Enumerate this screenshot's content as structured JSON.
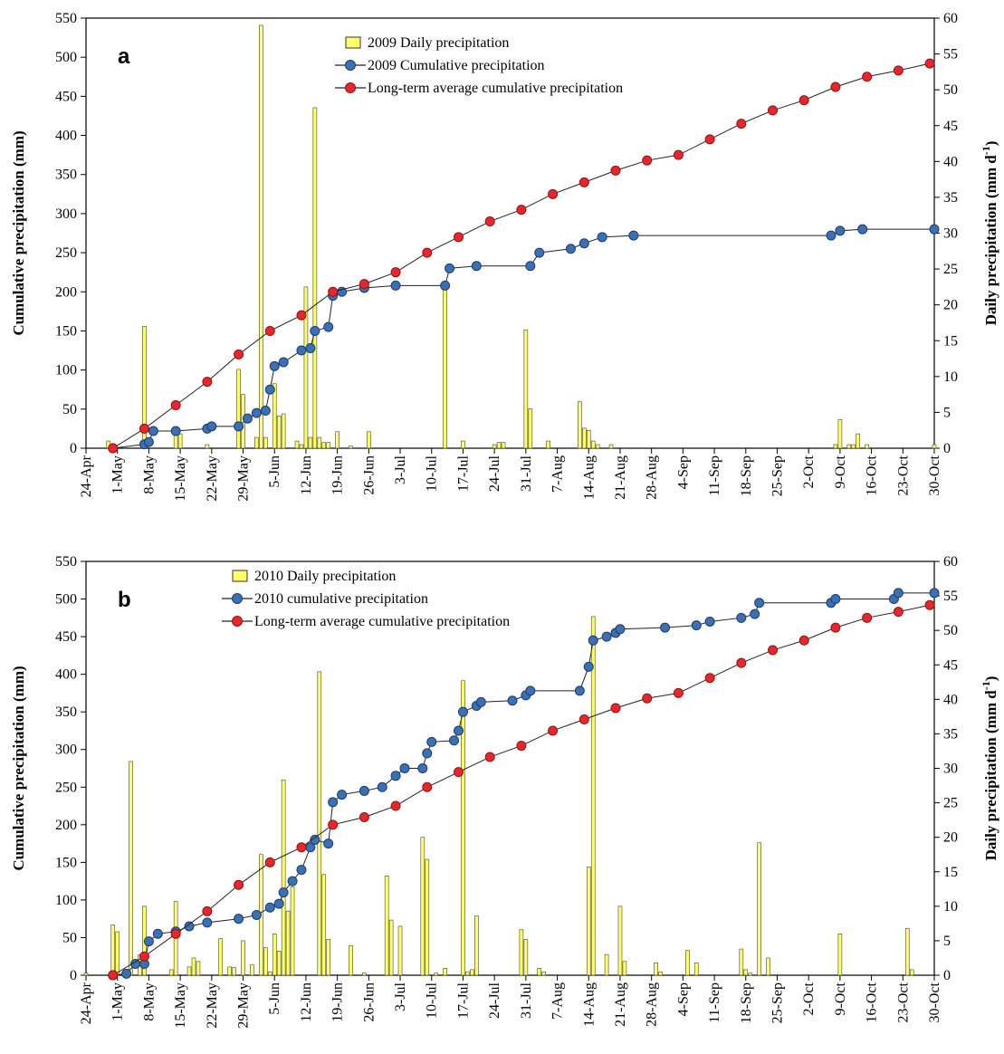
{
  "chart_data": [
    {
      "type": "combo",
      "panel_label": "a",
      "y_label": "Cumulative precipitation (mm)",
      "y2_label": [
        "Daily precipitation (mm d",
        "-1",
        ")"
      ],
      "xlim": [
        "24-Apr",
        "30-Oct"
      ],
      "xticks": [
        "24-Apr",
        "1-May",
        "8-May",
        "15-May",
        "22-May",
        "29-May",
        "5-Jun",
        "12-Jun",
        "19-Jun",
        "26-Jun",
        "3-Jul",
        "10-Jul",
        "17-Jul",
        "24-Jul",
        "31-Jul",
        "7-Aug",
        "14-Aug",
        "21-Aug",
        "28-Aug",
        "4-Sep",
        "11-Sep",
        "18-Sep",
        "25-Sep",
        "2-Oct",
        "9-Oct",
        "16-Oct",
        "23-Oct",
        "30-Oct"
      ],
      "ylim": [
        0,
        550
      ],
      "yticks": [
        0,
        50,
        100,
        150,
        200,
        250,
        300,
        350,
        400,
        450,
        500,
        550
      ],
      "y2lim": [
        0,
        60
      ],
      "y2ticks": [
        0,
        5,
        10,
        15,
        20,
        25,
        30,
        35,
        40,
        45,
        50,
        55,
        60
      ],
      "series": [
        {
          "name": "2009 Daily precipitation",
          "type": "bar",
          "axis": "y2",
          "color": "#ffff66",
          "x": [
            "29-Apr",
            "7-May",
            "14-May",
            "15-May",
            "21-May",
            "28-May",
            "29-May",
            "1-Jun",
            "2-Jun",
            "3-Jun",
            "5-Jun",
            "6-Jun",
            "7-Jun",
            "10-Jun",
            "11-Jun",
            "12-Jun",
            "13-Jun",
            "14-Jun",
            "15-Jun",
            "16-Jun",
            "17-Jun",
            "19-Jun",
            "22-Jun",
            "26-Jun",
            "13-Jul",
            "17-Jul",
            "24-Jul",
            "25-Jul",
            "26-Jul",
            "31-Jul",
            "1-Aug",
            "5-Aug",
            "12-Aug",
            "13-Aug",
            "14-Aug",
            "15-Aug",
            "16-Aug",
            "19-Aug",
            "8-Oct",
            "9-Oct",
            "11-Oct",
            "12-Oct",
            "13-Oct",
            "15-Oct",
            "30-Oct"
          ],
          "values": [
            1,
            17,
            2,
            2,
            0.5,
            11,
            7.5,
            1.5,
            59,
            1.5,
            9,
            4.5,
            4.8,
            1,
            0.5,
            22.5,
            1.5,
            47.5,
            1.5,
            0.8,
            0.8,
            2.3,
            0.3,
            2.3,
            22.5,
            1,
            0.5,
            0.8,
            0.8,
            16.5,
            5.5,
            1,
            6.5,
            2.8,
            2.5,
            1,
            0.5,
            0.5,
            0.5,
            4,
            0.5,
            0.5,
            2,
            0.5,
            0.5
          ]
        },
        {
          "name": "2009 Cumulative precipitation",
          "type": "line",
          "axis": "y",
          "color": "#3a70b5",
          "x": [
            "30-Apr",
            "7-May",
            "8-May",
            "9-May",
            "14-May",
            "21-May",
            "22-May",
            "28-May",
            "30-May",
            "1-Jun",
            "3-Jun",
            "4-Jun",
            "5-Jun",
            "7-Jun",
            "11-Jun",
            "13-Jun",
            "14-Jun",
            "17-Jun",
            "18-Jun",
            "20-Jun",
            "25-Jun",
            "2-Jul",
            "13-Jul",
            "14-Jul",
            "20-Jul",
            "1-Aug",
            "3-Aug",
            "10-Aug",
            "13-Aug",
            "17-Aug",
            "24-Aug",
            "7-Oct",
            "9-Oct",
            "14-Oct",
            "30-Oct"
          ],
          "values": [
            0,
            5,
            8,
            22,
            22,
            25,
            28,
            28,
            38,
            45,
            48,
            75,
            105,
            110,
            125,
            128,
            150,
            155,
            195,
            200,
            205,
            208,
            208,
            230,
            233,
            233,
            250,
            255,
            262,
            270,
            272,
            272,
            278,
            280,
            280
          ]
        },
        {
          "name": "Long-term average cumulative precipitation",
          "type": "line",
          "axis": "y",
          "color": "#e8262b",
          "x": [
            "30-Apr",
            "7-May",
            "14-May",
            "21-May",
            "28-May",
            "4-Jun",
            "11-Jun",
            "18-Jun",
            "25-Jun",
            "2-Jul",
            "9-Jul",
            "16-Jul",
            "23-Jul",
            "30-Jul",
            "6-Aug",
            "13-Aug",
            "20-Aug",
            "27-Aug",
            "3-Sep",
            "10-Sep",
            "17-Sep",
            "24-Sep",
            "1-Oct",
            "8-Oct",
            "15-Oct",
            "22-Oct",
            "29-Oct"
          ],
          "values": [
            0,
            25,
            55,
            85,
            120,
            150,
            170,
            200,
            210,
            225,
            250,
            270,
            290,
            305,
            325,
            340,
            355,
            368,
            375,
            395,
            415,
            432,
            445,
            462,
            475,
            483,
            492
          ]
        }
      ]
    },
    {
      "type": "combo",
      "panel_label": "b",
      "y_label": "Cumulative precipitation (mm)",
      "y2_label": [
        "Daily precipitation (mm d",
        "-1",
        ")"
      ],
      "xlim": [
        "24-Apr",
        "30-Oct"
      ],
      "xticks": [
        "24-Apr",
        "1-May",
        "8-May",
        "15-May",
        "22-May",
        "29-May",
        "5-Jun",
        "12-Jun",
        "19-Jun",
        "26-Jun",
        "3-Jul",
        "10-Jul",
        "17-Jul",
        "24-Jul",
        "31-Jul",
        "7-Aug",
        "14-Aug",
        "21-Aug",
        "28-Aug",
        "4-Sep",
        "11-Sep",
        "18-Sep",
        "25-Sep",
        "2-Oct",
        "9-Oct",
        "16-Oct",
        "23-Oct",
        "30-Oct"
      ],
      "ylim": [
        0,
        550
      ],
      "yticks": [
        0,
        50,
        100,
        150,
        200,
        250,
        300,
        350,
        400,
        450,
        500,
        550
      ],
      "y2lim": [
        0,
        60
      ],
      "y2ticks": [
        0,
        5,
        10,
        15,
        20,
        25,
        30,
        35,
        40,
        45,
        50,
        55,
        60
      ],
      "series": [
        {
          "name": "2010 Daily precipitation",
          "type": "bar",
          "axis": "y2",
          "color": "#ffff66",
          "x": [
            "24-Apr",
            "30-Apr",
            "1-May",
            "4-May",
            "6-May",
            "7-May",
            "13-May",
            "14-May",
            "17-May",
            "18-May",
            "19-May",
            "24-May",
            "26-May",
            "27-May",
            "29-May",
            "31-May",
            "2-Jun",
            "3-Jun",
            "4-Jun",
            "5-Jun",
            "6-Jun",
            "7-Jun",
            "8-Jun",
            "9-Jun",
            "15-Jun",
            "16-Jun",
            "17-Jun",
            "22-Jun",
            "25-Jun",
            "30-Jun",
            "1-Jul",
            "3-Jul",
            "8-Jul",
            "9-Jul",
            "11-Jul",
            "13-Jul",
            "17-Jul",
            "18-Jul",
            "19-Jul",
            "20-Jul",
            "30-Jul",
            "31-Jul",
            "3-Aug",
            "4-Aug",
            "14-Aug",
            "15-Aug",
            "18-Aug",
            "21-Aug",
            "22-Aug",
            "29-Aug",
            "30-Aug",
            "5-Sep",
            "7-Sep",
            "17-Sep",
            "18-Sep",
            "19-Sep",
            "21-Sep",
            "23-Sep",
            "9-Oct",
            "24-Oct",
            "25-Oct"
          ],
          "values": [
            0.3,
            7.3,
            6.3,
            31,
            3,
            10,
            0.8,
            10.7,
            1.2,
            2.5,
            2,
            5.3,
            1.2,
            1.1,
            5,
            1.5,
            17.5,
            4,
            0.5,
            6,
            3.5,
            28.3,
            9.3,
            12.8,
            44,
            14.6,
            5.2,
            4.3,
            0.3,
            14.4,
            8,
            7.1,
            20,
            16.8,
            0.3,
            1,
            42.7,
            0.5,
            0.8,
            8.6,
            6.6,
            5.2,
            1,
            0.5,
            15.7,
            52,
            3,
            10,
            2,
            1.8,
            0.5,
            3.6,
            1.8,
            3.8,
            0.8,
            0.3,
            19.2,
            2.5,
            6,
            6.8,
            0.8
          ]
        },
        {
          "name": "2010 cumulative precipitation",
          "type": "line",
          "axis": "y",
          "color": "#3a70b5",
          "x": [
            "30-Apr",
            "3-May",
            "5-May",
            "7-May",
            "8-May",
            "10-May",
            "14-May",
            "17-May",
            "21-May",
            "28-May",
            "1-Jun",
            "4-Jun",
            "6-Jun",
            "7-Jun",
            "9-Jun",
            "11-Jun",
            "13-Jun",
            "14-Jun",
            "17-Jun",
            "18-Jun",
            "20-Jun",
            "25-Jun",
            "29-Jun",
            "2-Jul",
            "4-Jul",
            "8-Jul",
            "9-Jul",
            "10-Jul",
            "15-Jul",
            "16-Jul",
            "17-Jul",
            "20-Jul",
            "21-Jul",
            "28-Jul",
            "31-Jul",
            "1-Aug",
            "12-Aug",
            "14-Aug",
            "15-Aug",
            "18-Aug",
            "20-Aug",
            "21-Aug",
            "31-Aug",
            "7-Sep",
            "10-Sep",
            "17-Sep",
            "20-Sep",
            "21-Sep",
            "7-Oct",
            "8-Oct",
            "21-Oct",
            "22-Oct",
            "30-Oct"
          ],
          "values": [
            0,
            2,
            15,
            15,
            45,
            55,
            58,
            65,
            70,
            75,
            80,
            90,
            95,
            110,
            125,
            140,
            170,
            180,
            175,
            230,
            240,
            245,
            250,
            265,
            275,
            275,
            295,
            310,
            312,
            325,
            350,
            358,
            363,
            365,
            372,
            378,
            378,
            410,
            445,
            450,
            455,
            460,
            462,
            465,
            470,
            475,
            480,
            495,
            495,
            500,
            500,
            508,
            508
          ]
        },
        {
          "name": "Long-term average cumulative precipitation",
          "type": "line",
          "axis": "y",
          "color": "#e8262b",
          "x": [
            "30-Apr",
            "7-May",
            "14-May",
            "21-May",
            "28-May",
            "4-Jun",
            "11-Jun",
            "18-Jun",
            "25-Jun",
            "2-Jul",
            "9-Jul",
            "16-Jul",
            "23-Jul",
            "30-Jul",
            "6-Aug",
            "13-Aug",
            "20-Aug",
            "27-Aug",
            "3-Sep",
            "10-Sep",
            "17-Sep",
            "24-Sep",
            "1-Oct",
            "8-Oct",
            "15-Oct",
            "22-Oct",
            "29-Oct"
          ],
          "values": [
            0,
            25,
            55,
            85,
            120,
            150,
            170,
            200,
            210,
            225,
            250,
            270,
            290,
            305,
            325,
            340,
            355,
            368,
            375,
            395,
            415,
            432,
            445,
            462,
            475,
            483,
            492
          ]
        }
      ]
    }
  ]
}
